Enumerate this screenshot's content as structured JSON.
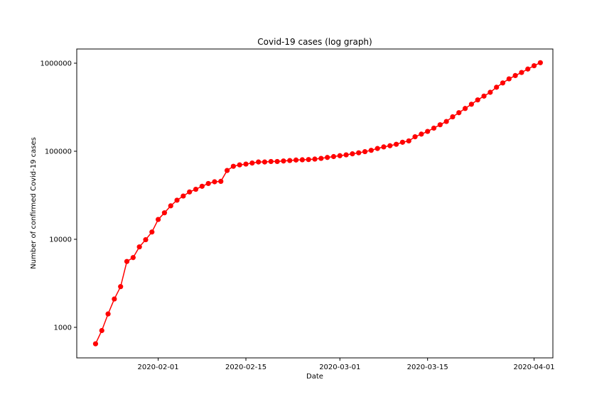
{
  "chart_data": {
    "type": "line",
    "title": "Covid-19 cases (log graph)",
    "xlabel": "Date",
    "ylabel": "Number of confirmed Covid-19 cases",
    "y_scale": "log",
    "ylim": [
      450,
      1450000
    ],
    "xlim": [
      "2020-01-19",
      "2020-04-04"
    ],
    "grid": false,
    "marker": "circle",
    "color": "#ff0000",
    "x_ticks": [
      "2020-02-01",
      "2020-02-15",
      "2020-03-01",
      "2020-03-15",
      "2020-04-01"
    ],
    "y_ticks": [
      {
        "value": 1000,
        "label": "1000"
      },
      {
        "value": 10000,
        "label": "10000"
      },
      {
        "value": 100000,
        "label": "100000"
      },
      {
        "value": 1000000,
        "label": "1000000"
      }
    ],
    "series": [
      {
        "x": [
          "2020-01-22",
          "2020-01-23",
          "2020-01-24",
          "2020-01-25",
          "2020-01-26",
          "2020-01-27",
          "2020-01-28",
          "2020-01-29",
          "2020-01-30",
          "2020-01-31",
          "2020-02-01",
          "2020-02-02",
          "2020-02-03",
          "2020-02-04",
          "2020-02-05",
          "2020-02-06",
          "2020-02-07",
          "2020-02-08",
          "2020-02-09",
          "2020-02-10",
          "2020-02-11",
          "2020-02-12",
          "2020-02-13",
          "2020-02-14",
          "2020-02-15",
          "2020-02-16",
          "2020-02-17",
          "2020-02-18",
          "2020-02-19",
          "2020-02-20",
          "2020-02-21",
          "2020-02-22",
          "2020-02-23",
          "2020-02-24",
          "2020-02-25",
          "2020-02-26",
          "2020-02-27",
          "2020-02-28",
          "2020-02-29",
          "2020-03-01",
          "2020-03-02",
          "2020-03-03",
          "2020-03-04",
          "2020-03-05",
          "2020-03-06",
          "2020-03-07",
          "2020-03-08",
          "2020-03-09",
          "2020-03-10",
          "2020-03-11",
          "2020-03-12",
          "2020-03-13",
          "2020-03-14",
          "2020-03-15",
          "2020-03-16",
          "2020-03-17",
          "2020-03-18",
          "2020-03-19",
          "2020-03-20",
          "2020-03-21",
          "2020-03-22",
          "2020-03-23",
          "2020-03-24",
          "2020-03-25",
          "2020-03-26",
          "2020-03-27",
          "2020-03-28",
          "2020-03-29",
          "2020-03-30",
          "2020-03-31",
          "2020-04-01",
          "2020-04-02"
        ],
        "values": [
          650,
          920,
          1420,
          2100,
          2900,
          5600,
          6200,
          8200,
          9900,
          12100,
          16800,
          20000,
          24000,
          27800,
          31000,
          34500,
          37000,
          40000,
          43000,
          45000,
          45500,
          60500,
          67500,
          70000,
          71500,
          73500,
          75500,
          75500,
          76500,
          76500,
          77500,
          78500,
          79500,
          80000,
          80500,
          81500,
          83000,
          85000,
          87000,
          89000,
          91000,
          93500,
          96000,
          99000,
          102500,
          107500,
          112000,
          115500,
          120000,
          126500,
          131000,
          146000,
          156500,
          168000,
          183000,
          200000,
          218000,
          246000,
          274000,
          306000,
          342000,
          383000,
          423000,
          467000,
          533000,
          597000,
          664000,
          724000,
          785000,
          858000,
          936000,
          1013000
        ]
      }
    ]
  }
}
